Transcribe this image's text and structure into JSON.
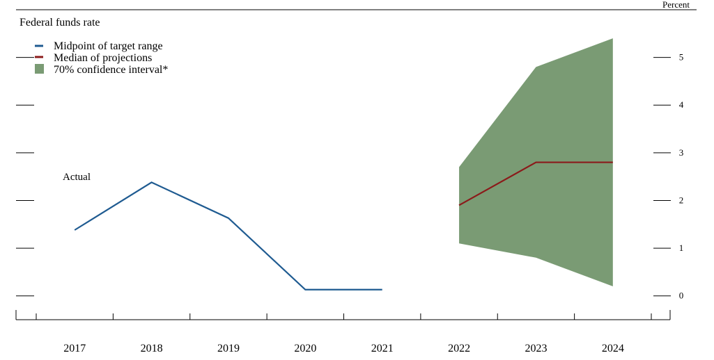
{
  "chart_data": {
    "type": "line",
    "title": "Federal funds rate",
    "unit_label": "Percent",
    "x": [
      2017,
      2018,
      2019,
      2020,
      2021,
      2022,
      2023,
      2024
    ],
    "xlim": [
      2016.5,
      2024.5
    ],
    "ylim": [
      -0.5,
      6.0
    ],
    "yticks": [
      0,
      1,
      2,
      3,
      4,
      5
    ],
    "annotations": [
      {
        "text": "Actual"
      }
    ],
    "series": [
      {
        "name": "Midpoint of target range",
        "color": "#1f5b91",
        "x": [
          2017,
          2018,
          2019,
          2020,
          2021
        ],
        "values": [
          1.38,
          2.38,
          1.63,
          0.13,
          0.13
        ]
      },
      {
        "name": "Median of projections",
        "color": "#8b1a1a",
        "x": [
          2022,
          2023,
          2024
        ],
        "values": [
          1.9,
          2.8,
          2.8
        ]
      }
    ],
    "band": {
      "name": "70% confidence interval*",
      "color": "#7a9b74",
      "x": [
        2022,
        2023,
        2024
      ],
      "lower": [
        1.1,
        0.8,
        0.2
      ],
      "upper": [
        2.7,
        4.8,
        5.4
      ]
    },
    "grid": false,
    "legend_position": "top-left"
  }
}
